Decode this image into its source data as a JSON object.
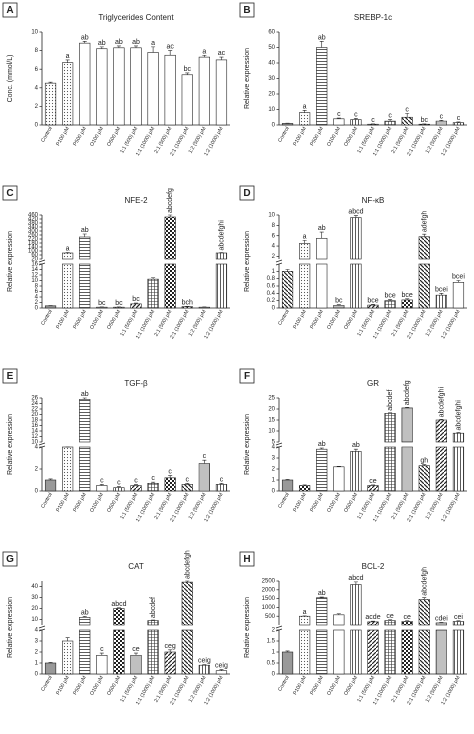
{
  "chart_data": [
    {
      "type": "bar",
      "panel": "A",
      "title": "Triglycerides Content",
      "ylabel": "Conc. (mmol/L)",
      "categories": [
        "Control",
        "P100 μM",
        "P500 μM",
        "O100 μM",
        "O500 μM",
        "1:1 (500) μM",
        "1:1 (1000) μM",
        "2:1 (500) μM",
        "2:1 (1000) μM",
        "1:2 (500) μM",
        "1:2 (1000) μM"
      ],
      "values": [
        4.5,
        6.7,
        8.8,
        8.2,
        8.3,
        8.3,
        7.8,
        7.5,
        5.4,
        7.3,
        7.0
      ],
      "errors": [
        0.1,
        0.3,
        0.2,
        0.2,
        0.2,
        0.2,
        0.6,
        0.5,
        0.2,
        0.2,
        0.3
      ],
      "annotations": [
        null,
        "a",
        "ab",
        "ab",
        "ab",
        "ab",
        "a",
        "ac",
        "bc",
        "a",
        "ac"
      ],
      "patterns": [
        "dots",
        "dots",
        "white",
        "white",
        "white",
        "white",
        "white",
        "white",
        "white",
        "white",
        "white"
      ],
      "ylim": [
        0,
        10
      ],
      "yticks": [
        0,
        2,
        4,
        6,
        8,
        10
      ]
    },
    {
      "type": "bar",
      "panel": "B",
      "title": "SREBP-1c",
      "ylabel": "Relative expression",
      "categories": [
        "Control",
        "P100 μM",
        "P500 μM",
        "O100 μM",
        "O500 μM",
        "1:1 (500) μM",
        "1:1 (1000) μM",
        "2:1 (500) μM",
        "2:1 (1000) μM",
        "1:2 (500) μM",
        "1:2 (1000) μM"
      ],
      "values": [
        1,
        8,
        50,
        4,
        3.5,
        0.5,
        2.5,
        5,
        0.5,
        2.5,
        1.5
      ],
      "errors": [
        0.2,
        1.5,
        4,
        0.5,
        0.8,
        0.2,
        1,
        2.5,
        0.2,
        0.5,
        0.5
      ],
      "annotations": [
        null,
        "a",
        "ab",
        "c",
        "c",
        "c",
        "c",
        "c",
        "bc",
        "c",
        "c"
      ],
      "patterns": [
        "gray",
        "dots",
        "hlines",
        "white",
        "vlines",
        "diag",
        "grid",
        "back-diag",
        "checker",
        "dense-dots",
        "vlines"
      ],
      "ylim": [
        0,
        60
      ],
      "yticks": [
        0,
        10,
        20,
        30,
        40,
        50,
        60
      ]
    },
    {
      "type": "bar",
      "panel": "C",
      "title": "NFE-2",
      "ylabel": "Relative expression",
      "categories": [
        "Control",
        "P100 μM",
        "P500 μM",
        "O100 μM",
        "O500 μM",
        "1:1 (500) μM",
        "1:1 (1000) μM",
        "2:1 (500) μM",
        "2:1 (1000) μM",
        "1:2 (500) μM",
        "1:2 (1000) μM"
      ],
      "values": [
        0.8,
        80,
        240,
        0.3,
        0.3,
        1.5,
        10.5,
        440,
        0.5,
        0.3,
        80
      ],
      "errors": [
        0.1,
        5,
        30,
        0.1,
        0.1,
        0.3,
        0.5,
        20,
        0.1,
        0.1,
        5
      ],
      "annotations": [
        null,
        "a",
        "ab",
        "bc",
        "bc",
        "bc",
        null,
        "abcdefg",
        "bch",
        null,
        "abcdefghi"
      ],
      "patterns": [
        "gray",
        "dots",
        "hlines",
        "white",
        "vlines",
        "diag",
        "grid",
        "checker",
        "back-diag",
        "dense-dots",
        "vlines"
      ],
      "segments": [
        {
          "ylim": [
            0,
            16
          ],
          "yticks": [
            0,
            2,
            4,
            6,
            8,
            10,
            12,
            14,
            16
          ]
        },
        {
          "ylim": [
            20,
            460
          ],
          "yticks": [
            20,
            60,
            100,
            140,
            180,
            220,
            260,
            300,
            340,
            380,
            420,
            460
          ]
        }
      ]
    },
    {
      "type": "bar",
      "panel": "D",
      "title": "NF-κB",
      "ylabel": "Relative expression",
      "categories": [
        "Control",
        "P100 μM",
        "P500 μM",
        "O100 μM",
        "O500 μM",
        "1:1 (500) μM",
        "1:1 (1000) μM",
        "2:1 (500) μM",
        "2:1 (1000) μM",
        "1:2 (500) μM",
        "1:2 (1000) μM"
      ],
      "values": [
        1,
        4.5,
        5.5,
        0.07,
        9.5,
        0.08,
        0.2,
        0.22,
        5.8,
        0.35,
        0.7
      ],
      "errors": [
        0.05,
        0.6,
        1.2,
        0.02,
        0.4,
        0.02,
        0.03,
        0.03,
        0.5,
        0.05,
        0.05
      ],
      "annotations": [
        null,
        "a",
        "ab",
        "bc",
        "abcd",
        "bce",
        "bce",
        "bce",
        "adefgh",
        "bcei",
        "bcei"
      ],
      "patterns": [
        "back-diag",
        "dots",
        "white",
        "dense-dots",
        "vlines",
        "diag",
        "grid",
        "checker",
        "back-diag",
        "vlines",
        "white"
      ],
      "segments": [
        {
          "ylim": [
            0,
            1.2
          ],
          "yticks": [
            0,
            0.2,
            0.4,
            0.6,
            0.8,
            1
          ]
        },
        {
          "ylim": [
            1.5,
            10
          ],
          "yticks": [
            2,
            4,
            6,
            8,
            10
          ]
        }
      ]
    },
    {
      "type": "bar",
      "panel": "E",
      "title": "TGF-β",
      "ylabel": "Relative expression",
      "categories": [
        "Control",
        "P100 μM",
        "P500 μM",
        "O100 μM",
        "O500 μM",
        "1:1 (500) μM",
        "1:1 (1000) μM",
        "2:1 (500) μM",
        "2:1 (1000) μM",
        "1:2 (500) μM",
        "1:2 (1000) μM"
      ],
      "values": [
        1,
        4,
        25.5,
        0.5,
        0.3,
        0.5,
        0.7,
        1.2,
        0.6,
        2.5,
        0.6
      ],
      "errors": [
        0.1,
        0.6,
        0.8,
        0.1,
        0.1,
        0.1,
        0.1,
        0.2,
        0.1,
        0.3,
        0.1
      ],
      "annotations": [
        null,
        null,
        "ab",
        "c",
        "c",
        "c",
        "c",
        "c",
        "c",
        "c",
        "c"
      ],
      "patterns": [
        "gray",
        "dots",
        "hlines",
        "white",
        "vlines",
        "diag",
        "grid",
        "checker",
        "back-diag",
        "dense-dots",
        "vlines"
      ],
      "segments": [
        {
          "ylim": [
            0,
            4
          ],
          "yticks": [
            0,
            2,
            4
          ]
        },
        {
          "ylim": [
            10,
            26
          ],
          "yticks": [
            10,
            12,
            14,
            16,
            18,
            20,
            22,
            24,
            26
          ]
        }
      ]
    },
    {
      "type": "bar",
      "panel": "F",
      "title": "GR",
      "ylabel": "Relative expression",
      "categories": [
        "Control",
        "P100 μM",
        "P500 μM",
        "O100 μM",
        "O500 μM",
        "1:1 (500) μM",
        "1:1 (1000) μM",
        "2:1 (500) μM",
        "2:1 (1000) μM",
        "1:2 (500) μM",
        "1:2 (1000) μM"
      ],
      "values": [
        1,
        0.5,
        3.8,
        2.2,
        3.6,
        0.5,
        18,
        20.5,
        2.3,
        15,
        9
      ],
      "errors": [
        0.05,
        0.05,
        0.1,
        0.05,
        0.2,
        0.05,
        0.3,
        0.3,
        0.1,
        0.3,
        0.3
      ],
      "annotations": [
        null,
        null,
        "ab",
        null,
        "ab",
        "ce",
        "abcdef",
        "abcdefg",
        "gh",
        "abcdefghi",
        "abcdefghi"
      ],
      "patterns": [
        "gray",
        "checker",
        "hlines",
        "white",
        "vlines",
        "diag",
        "grid",
        "dense-dots",
        "back-diag",
        "diag",
        "vlines"
      ],
      "segments": [
        {
          "ylim": [
            0,
            4
          ],
          "yticks": [
            0,
            1,
            2,
            3,
            4
          ]
        },
        {
          "ylim": [
            5,
            25
          ],
          "yticks": [
            5,
            10,
            15,
            20,
            25
          ]
        }
      ]
    },
    {
      "type": "bar",
      "panel": "G",
      "title": "CAT",
      "ylabel": "Relative expression",
      "categories": [
        "Control",
        "P100 μM",
        "P500 μM",
        "O100 μM",
        "O500 μM",
        "1:1 (500) μM",
        "1:1 (1000) μM",
        "2:1 (500) μM",
        "2:1 (1000) μM",
        "1:2 (500) μM",
        "1:2 (1000) μM"
      ],
      "values": [
        1,
        3,
        12,
        1.7,
        20,
        1.7,
        9,
        2,
        44,
        0.8,
        0.3
      ],
      "errors": [
        0.05,
        0.3,
        0.8,
        0.2,
        0.6,
        0.2,
        0.5,
        0.2,
        1,
        0.05,
        0.1
      ],
      "annotations": [
        null,
        null,
        "ab",
        "c",
        "abcd",
        "ce",
        "abcdef",
        "ceg",
        "abcdefgh",
        "ceig",
        "ceig"
      ],
      "patterns": [
        "gray",
        "dots",
        "hlines",
        "white",
        "checker",
        "dense-dots",
        "grid",
        "diag",
        "back-diag",
        "vlines",
        "white"
      ],
      "segments": [
        {
          "ylim": [
            0,
            4
          ],
          "yticks": [
            0,
            1,
            2,
            3,
            4
          ]
        },
        {
          "ylim": [
            5,
            45
          ],
          "yticks": [
            10,
            20,
            30,
            40
          ]
        }
      ]
    },
    {
      "type": "bar",
      "panel": "H",
      "title": "BCL-2",
      "ylabel": "Relative expression",
      "categories": [
        "Control",
        "P100 μM",
        "P500 μM",
        "O100 μM",
        "O500 μM",
        "1:1 (500) μM",
        "1:1 (1000) μM",
        "2:1 (500) μM",
        "2:1 (1000) μM",
        "1:2 (500) μM",
        "1:2 (1000) μM"
      ],
      "values": [
        1,
        500,
        1550,
        580,
        2300,
        180,
        250,
        200,
        1450,
        120,
        200
      ],
      "errors": [
        0.05,
        20,
        40,
        60,
        150,
        40,
        50,
        40,
        100,
        30,
        40
      ],
      "annotations": [
        null,
        "a",
        "ab",
        null,
        "abcd",
        "acde",
        "ce",
        "ce",
        "abcdefgh",
        "cdei",
        "cei"
      ],
      "patterns": [
        "gray",
        "dots",
        "hlines",
        "white",
        "vlines",
        "diag",
        "grid",
        "checker",
        "back-diag",
        "dense-dots",
        "vlines"
      ],
      "segments": [
        {
          "ylim": [
            0,
            2
          ],
          "yticks": [
            0,
            0.5,
            1,
            1.5,
            2
          ]
        },
        {
          "ylim": [
            2,
            2500
          ],
          "yticks": [
            500,
            1000,
            1500,
            2000,
            2500
          ]
        }
      ]
    }
  ]
}
